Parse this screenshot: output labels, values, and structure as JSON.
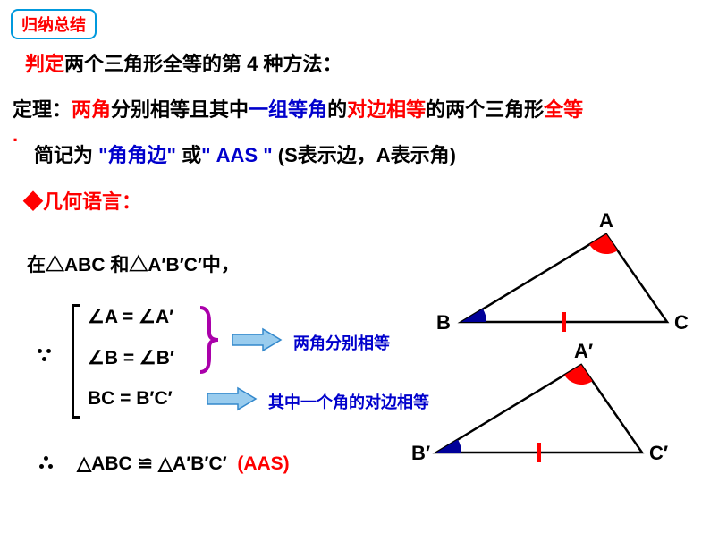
{
  "badge": {
    "text": "归纳总结",
    "color": "#ff0000",
    "border": "#0099dd"
  },
  "line1": {
    "prefix": "判定",
    "prefix_color": "#ff0000",
    "rest": "两个三角形全等的第 4 种方法：",
    "rest_color": "#000000"
  },
  "theorem": {
    "parts": [
      {
        "t": "定理：",
        "c": "#000000"
      },
      {
        "t": "两角",
        "c": "#ff0000"
      },
      {
        "t": "分别相等且其中",
        "c": "#000000"
      },
      {
        "t": "一组等角",
        "c": "#0000cc"
      },
      {
        "t": "的",
        "c": "#000000"
      },
      {
        "t": "对边相等",
        "c": "#ff0000"
      },
      {
        "t": "的两个三角形",
        "c": "#000000"
      },
      {
        "t": "全等",
        "c": "#ff0000"
      }
    ],
    "period": ".",
    "period_color": "#ff0000"
  },
  "abbrev": {
    "parts": [
      {
        "t": "简记为 ",
        "c": "#000000"
      },
      {
        "t": "\"角角边\" ",
        "c": "#0000cc"
      },
      {
        "t": "或",
        "c": "#000000"
      },
      {
        "t": "\" AAS \" ",
        "c": "#0000cc"
      },
      {
        "t": "(S表示边，A表示角)",
        "c": "#000000"
      }
    ]
  },
  "geom_language": {
    "text": "◆几何语言：",
    "color": "#ff0000"
  },
  "context": {
    "text": "在△ABC 和△A′B′C′中，",
    "color": "#000000",
    "fontsize": 21
  },
  "conditions": {
    "c1": "∠A = ∠A′",
    "c2": "∠B = ∠B′",
    "c3": "BC = B′C′"
  },
  "annotations": {
    "a1": {
      "text": "两角分别相等",
      "color": "#0000cc"
    },
    "a2": {
      "text": "其中一个角的对边相等",
      "color": "#0000cc"
    }
  },
  "conclusion": {
    "main": "△ABC ≌ △A′B′C′",
    "tag": "(AAS)",
    "tag_color": "#ff0000"
  },
  "triangle1": {
    "labels": {
      "A": "A",
      "B": "B",
      "C": "C"
    },
    "points": {
      "A": [
        678,
        262
      ],
      "B": [
        516,
        360
      ],
      "C": [
        746,
        360
      ]
    },
    "angleA_color": "#ff0000",
    "angleB_color": "#000099",
    "tick_color": "#ff0000",
    "line_color": "#000000",
    "label_fontsize": 22
  },
  "triangle2": {
    "labels": {
      "A": "A′",
      "B": "B′",
      "C": "C′"
    },
    "points": {
      "A": [
        650,
        408
      ],
      "B": [
        488,
        506
      ],
      "C": [
        718,
        506
      ]
    },
    "angleA_color": "#ff0000",
    "angleB_color": "#000099",
    "tick_color": "#ff0000",
    "line_color": "#000000",
    "label_fontsize": 22
  },
  "brace_color": "#aa00aa",
  "arrow_fill": "#99ccee",
  "arrow_stroke": "#3388cc"
}
